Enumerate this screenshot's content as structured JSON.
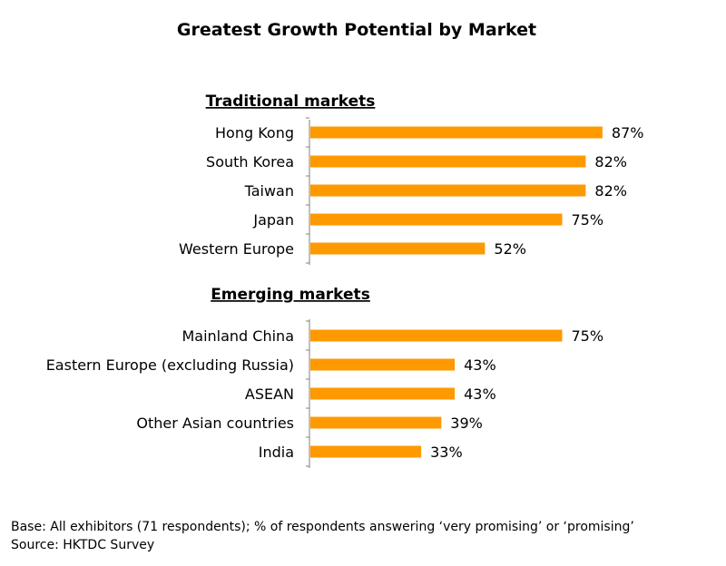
{
  "colors": {
    "bar": "#FF9900",
    "axis": "#808080",
    "text": "#000000"
  },
  "chart_data": {
    "type": "bar",
    "orientation": "horizontal",
    "title": "Greatest Growth Potential by Market",
    "value_suffix": "%",
    "xlim": [
      0,
      100
    ],
    "groups": [
      {
        "title": "Traditional markets",
        "categories": [
          "Hong Kong",
          "South Korea",
          "Taiwan",
          "Japan",
          "Western Europe"
        ],
        "values": [
          87,
          82,
          82,
          75,
          52
        ]
      },
      {
        "title": "Emerging markets",
        "categories": [
          "Mainland China",
          "Eastern Europe (excluding Russia)",
          "ASEAN",
          "Other Asian countries",
          "India"
        ],
        "values": [
          75,
          43,
          43,
          39,
          33
        ]
      }
    ]
  },
  "footer": {
    "base": "Base: All exhibitors (71 respondents); % of respondents answering ‘very promising’ or ‘promising’",
    "source": "Source: HKTDC Survey"
  }
}
